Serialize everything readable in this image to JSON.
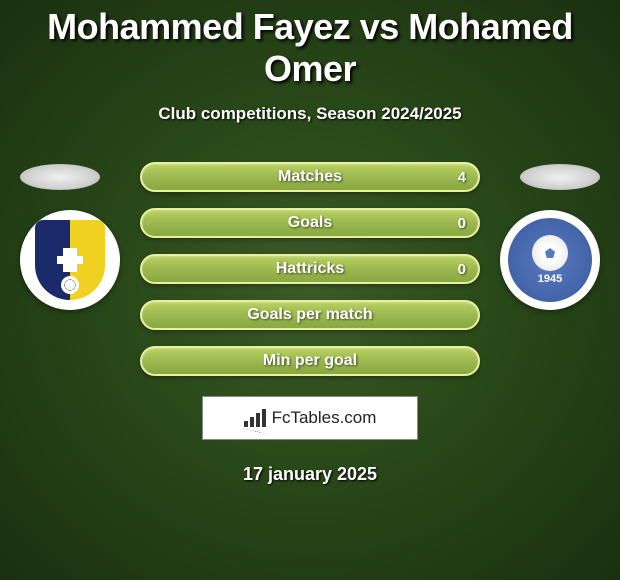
{
  "header": {
    "title": "Mohammed Fayez vs Mohamed Omer",
    "subtitle": "Club competitions, Season 2024/2025"
  },
  "players": {
    "left": {
      "club_name": "inter-zapresic",
      "club_colors": {
        "primary": "#1a2a6a",
        "secondary": "#f0d020"
      }
    },
    "right": {
      "club_name": "al-nasr",
      "club_year": "1945",
      "club_colors": {
        "primary": "#5a7ac0",
        "secondary": "#ffffff"
      }
    }
  },
  "stats": [
    {
      "label": "Matches",
      "value": "4"
    },
    {
      "label": "Goals",
      "value": "0"
    },
    {
      "label": "Hattricks",
      "value": "0"
    },
    {
      "label": "Goals per match",
      "value": ""
    },
    {
      "label": "Min per goal",
      "value": ""
    }
  ],
  "watermark": {
    "text": "FcTables.com"
  },
  "date": "17 january 2025",
  "colors": {
    "background_inner": "#3a5a2a",
    "background_outer": "#1a3010",
    "bar_fill": "#a0c050",
    "bar_border": "#e8f0a0",
    "text": "#ffffff"
  }
}
